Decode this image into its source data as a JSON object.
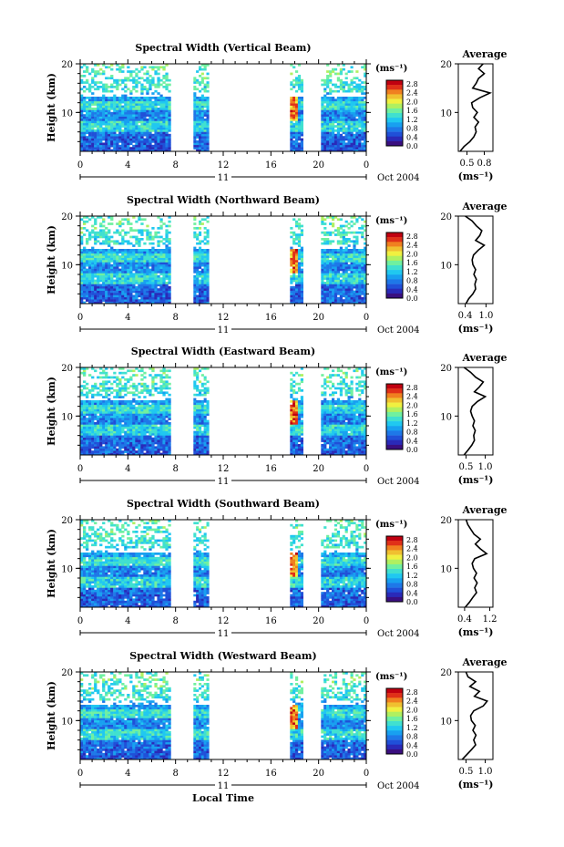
{
  "figure": {
    "x_axis_label": "Local Time",
    "date_label": "Oct 2004",
    "day_label": "11",
    "colorbar_unit": "(ms⁻¹)",
    "colorbar_ticks": [
      "2.8",
      "2.4",
      "2.0",
      "1.6",
      "1.2",
      "0.8",
      "0.4",
      "0.0"
    ],
    "average_title": "Average",
    "average_unit": "(ms⁻¹)",
    "y_label": "Height (km)"
  },
  "chart_data": [
    {
      "type": "heatmap",
      "title": "Spectral Width (Vertical Beam)",
      "xlabel": "",
      "ylabel": "Height (km)",
      "xlim": [
        0,
        24
      ],
      "ylim": [
        2,
        20
      ],
      "x_ticks": [
        "0",
        "4",
        "8",
        "12",
        "16",
        "20",
        "0"
      ],
      "y_ticks": [
        "20",
        "10"
      ],
      "z_unit": "ms⁻¹",
      "zlim": [
        0.0,
        3.0
      ],
      "data_segments_local_time": [
        [
          0,
          7.6
        ],
        [
          9.5,
          10.8
        ],
        [
          17.6,
          18.7
        ],
        [
          20.2,
          24
        ]
      ],
      "profile": {
        "title": "Average",
        "xlabel": "(ms⁻¹)",
        "x_ticks": [
          "0.5",
          "0.8"
        ],
        "xlim": [
          0.35,
          0.95
        ],
        "height_km": [
          2,
          3,
          4,
          5,
          6,
          7,
          8,
          9,
          10,
          11,
          12,
          13,
          14,
          15,
          16,
          17,
          18,
          19,
          20
        ],
        "values": [
          0.38,
          0.45,
          0.55,
          0.62,
          0.66,
          0.64,
          0.7,
          0.62,
          0.68,
          0.6,
          0.58,
          0.72,
          0.9,
          0.6,
          0.66,
          0.7,
          0.8,
          0.7,
          0.78
        ]
      }
    },
    {
      "type": "heatmap",
      "title": "Spectral Width (Northward Beam)",
      "xlabel": "",
      "ylabel": "Height (km)",
      "xlim": [
        0,
        24
      ],
      "ylim": [
        2,
        20
      ],
      "x_ticks": [
        "0",
        "4",
        "8",
        "12",
        "16",
        "20",
        "0"
      ],
      "y_ticks": [
        "20",
        "10"
      ],
      "z_unit": "ms⁻¹",
      "zlim": [
        0.0,
        3.0
      ],
      "data_segments_local_time": [
        [
          0,
          7.6
        ],
        [
          9.5,
          10.8
        ],
        [
          17.6,
          18.7
        ],
        [
          20.2,
          24
        ]
      ],
      "profile": {
        "title": "Average",
        "xlabel": "(ms⁻¹)",
        "x_ticks": [
          "0.4",
          "1.0"
        ],
        "xlim": [
          0.2,
          1.2
        ],
        "height_km": [
          2,
          3,
          4,
          5,
          6,
          7,
          8,
          9,
          10,
          11,
          12,
          13,
          14,
          15,
          16,
          17,
          18,
          19,
          20
        ],
        "values": [
          0.42,
          0.5,
          0.62,
          0.7,
          0.68,
          0.72,
          0.65,
          0.7,
          0.62,
          0.6,
          0.64,
          0.78,
          0.95,
          0.7,
          0.82,
          0.88,
          0.72,
          0.6,
          0.4
        ]
      }
    },
    {
      "type": "heatmap",
      "title": "Spectral Width (Eastward Beam)",
      "xlabel": "",
      "ylabel": "Height (km)",
      "xlim": [
        0,
        24
      ],
      "ylim": [
        2,
        20
      ],
      "x_ticks": [
        "0",
        "4",
        "8",
        "12",
        "16",
        "20",
        "0"
      ],
      "y_ticks": [
        "20",
        "10"
      ],
      "z_unit": "ms⁻¹",
      "zlim": [
        0.0,
        3.0
      ],
      "data_segments_local_time": [
        [
          0,
          7.6
        ],
        [
          9.5,
          10.8
        ],
        [
          17.6,
          18.7
        ],
        [
          20.2,
          24
        ]
      ],
      "profile": {
        "title": "Average",
        "xlabel": "(ms⁻¹)",
        "x_ticks": [
          "0.5",
          "1.0"
        ],
        "xlim": [
          0.3,
          1.2
        ],
        "height_km": [
          2,
          3,
          4,
          5,
          6,
          7,
          8,
          9,
          10,
          11,
          12,
          13,
          14,
          15,
          16,
          17,
          18,
          19,
          20
        ],
        "values": [
          0.45,
          0.55,
          0.65,
          0.72,
          0.7,
          0.74,
          0.68,
          0.72,
          0.66,
          0.62,
          0.66,
          0.8,
          1.0,
          0.72,
          0.85,
          0.95,
          0.75,
          0.62,
          0.45
        ]
      }
    },
    {
      "type": "heatmap",
      "title": "Spectral Width (Southward Beam)",
      "xlabel": "",
      "ylabel": "Height (km)",
      "xlim": [
        0,
        24
      ],
      "ylim": [
        2,
        20
      ],
      "x_ticks": [
        "0",
        "4",
        "8",
        "12",
        "16",
        "20",
        "0"
      ],
      "y_ticks": [
        "20",
        "10"
      ],
      "z_unit": "ms⁻¹",
      "zlim": [
        0.0,
        3.0
      ],
      "data_segments_local_time": [
        [
          0,
          7.6
        ],
        [
          9.5,
          10.8
        ],
        [
          17.6,
          18.7
        ],
        [
          20.2,
          24
        ]
      ],
      "profile": {
        "title": "Average",
        "xlabel": "(ms⁻¹)",
        "x_ticks": [
          "0.4",
          "1.2"
        ],
        "xlim": [
          0.2,
          1.3
        ],
        "height_km": [
          2,
          3,
          4,
          5,
          6,
          7,
          8,
          9,
          10,
          11,
          12,
          13,
          14,
          15,
          16,
          17,
          18,
          19,
          20
        ],
        "values": [
          0.42,
          0.55,
          0.66,
          0.78,
          0.72,
          0.8,
          0.7,
          0.78,
          0.68,
          0.64,
          0.72,
          1.1,
          0.9,
          0.74,
          0.9,
          0.7,
          0.6,
          0.5,
          0.45
        ]
      }
    },
    {
      "type": "heatmap",
      "title": "Spectral Width (Westward Beam)",
      "xlabel": "Local Time",
      "ylabel": "Height (km)",
      "xlim": [
        0,
        24
      ],
      "ylim": [
        2,
        20
      ],
      "x_ticks": [
        "0",
        "4",
        "8",
        "12",
        "16",
        "20",
        "0"
      ],
      "y_ticks": [
        "20",
        "10"
      ],
      "z_unit": "ms⁻¹",
      "zlim": [
        0.0,
        3.0
      ],
      "data_segments_local_time": [
        [
          0,
          7.6
        ],
        [
          9.5,
          10.8
        ],
        [
          17.6,
          18.7
        ],
        [
          20.2,
          24
        ]
      ],
      "profile": {
        "title": "Average",
        "xlabel": "(ms⁻¹)",
        "x_ticks": [
          "0.5",
          "1.0"
        ],
        "xlim": [
          0.3,
          1.2
        ],
        "height_km": [
          2,
          3,
          4,
          5,
          6,
          7,
          8,
          9,
          10,
          11,
          12,
          13,
          14,
          15,
          16,
          17,
          18,
          19,
          20
        ],
        "values": [
          0.4,
          0.52,
          0.64,
          0.75,
          0.7,
          0.76,
          0.68,
          0.74,
          0.64,
          0.62,
          0.7,
          0.95,
          1.05,
          0.72,
          0.85,
          0.6,
          0.75,
          0.55,
          0.5
        ]
      }
    }
  ]
}
